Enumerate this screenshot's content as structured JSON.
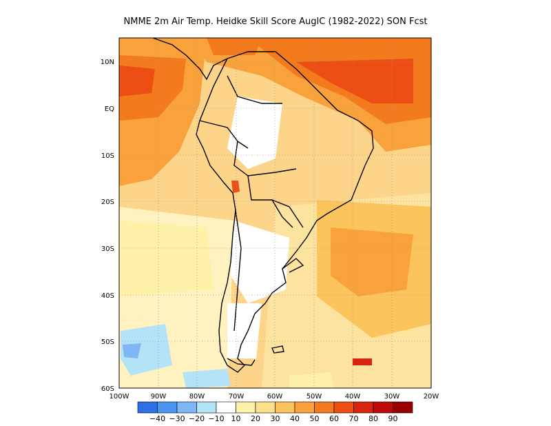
{
  "title": "NMME  2m Air Temp. Heidke Skill Score AugIC (1982-2022) SON Fcst",
  "map": {
    "region": "South America",
    "lon_range": [
      -100,
      -20
    ],
    "lat_range": [
      -60,
      15
    ],
    "lat_ticks": [
      "10N",
      "EQ",
      "10S",
      "20S",
      "30S",
      "40S",
      "50S",
      "60S"
    ],
    "lon_ticks": [
      "100W",
      "90W",
      "80W",
      "70W",
      "60W",
      "50W",
      "40W",
      "30W",
      "20W"
    ],
    "grid": "dotted"
  },
  "colorbar": {
    "labels": [
      "-40",
      "-30",
      "-20",
      "-10",
      "10",
      "20",
      "30",
      "40",
      "50",
      "60",
      "70",
      "80",
      "90"
    ],
    "colors": [
      "#2c6fe8",
      "#4a94f0",
      "#7fb6f5",
      "#b4e3f7",
      "#ffffff",
      "#fff2a8",
      "#fde08a",
      "#fcc45c",
      "#f9a13a",
      "#f47a1e",
      "#ec4e14",
      "#d8240e",
      "#bd0b0b",
      "#9a0000"
    ]
  },
  "chart_data": {
    "type": "heatmap",
    "variable": "Heidke Skill Score",
    "title": "NMME  2m Air Temp. Heidke Skill Score AugIC (1982-2022) SON Fcst",
    "xlim": [
      -100,
      -20
    ],
    "ylim": [
      -60,
      15
    ],
    "levels": [
      -40,
      -30,
      -20,
      -10,
      10,
      20,
      30,
      40,
      50,
      60,
      70,
      80,
      90
    ],
    "grid": true
  }
}
